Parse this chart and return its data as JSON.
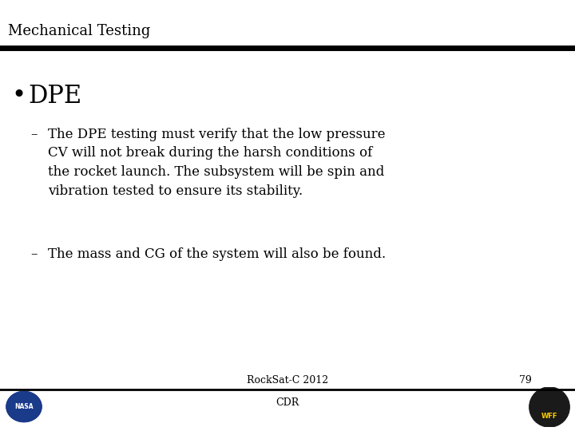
{
  "title": "Mechanical Testing",
  "background_color": "#ffffff",
  "title_color": "#000000",
  "title_fontsize": 13,
  "bullet_heading": "DPE",
  "bullet_heading_fontsize": 22,
  "sub_bullet1": "The DPE testing must verify that the low pressure\nCV will not break during the harsh conditions of\nthe rocket launch. The subsystem will be spin and\nvibration tested to ensure its stability.",
  "sub_bullet2": "The mass and CG of the system will also be found.",
  "sub_bullet_fontsize": 12,
  "footer_center": "RockSat-C 2012",
  "footer_center2": "CDR",
  "footer_page": "79",
  "footer_fontsize": 9,
  "header_line_color": "#000000",
  "footer_line_color": "#000000",
  "text_color": "#000000"
}
